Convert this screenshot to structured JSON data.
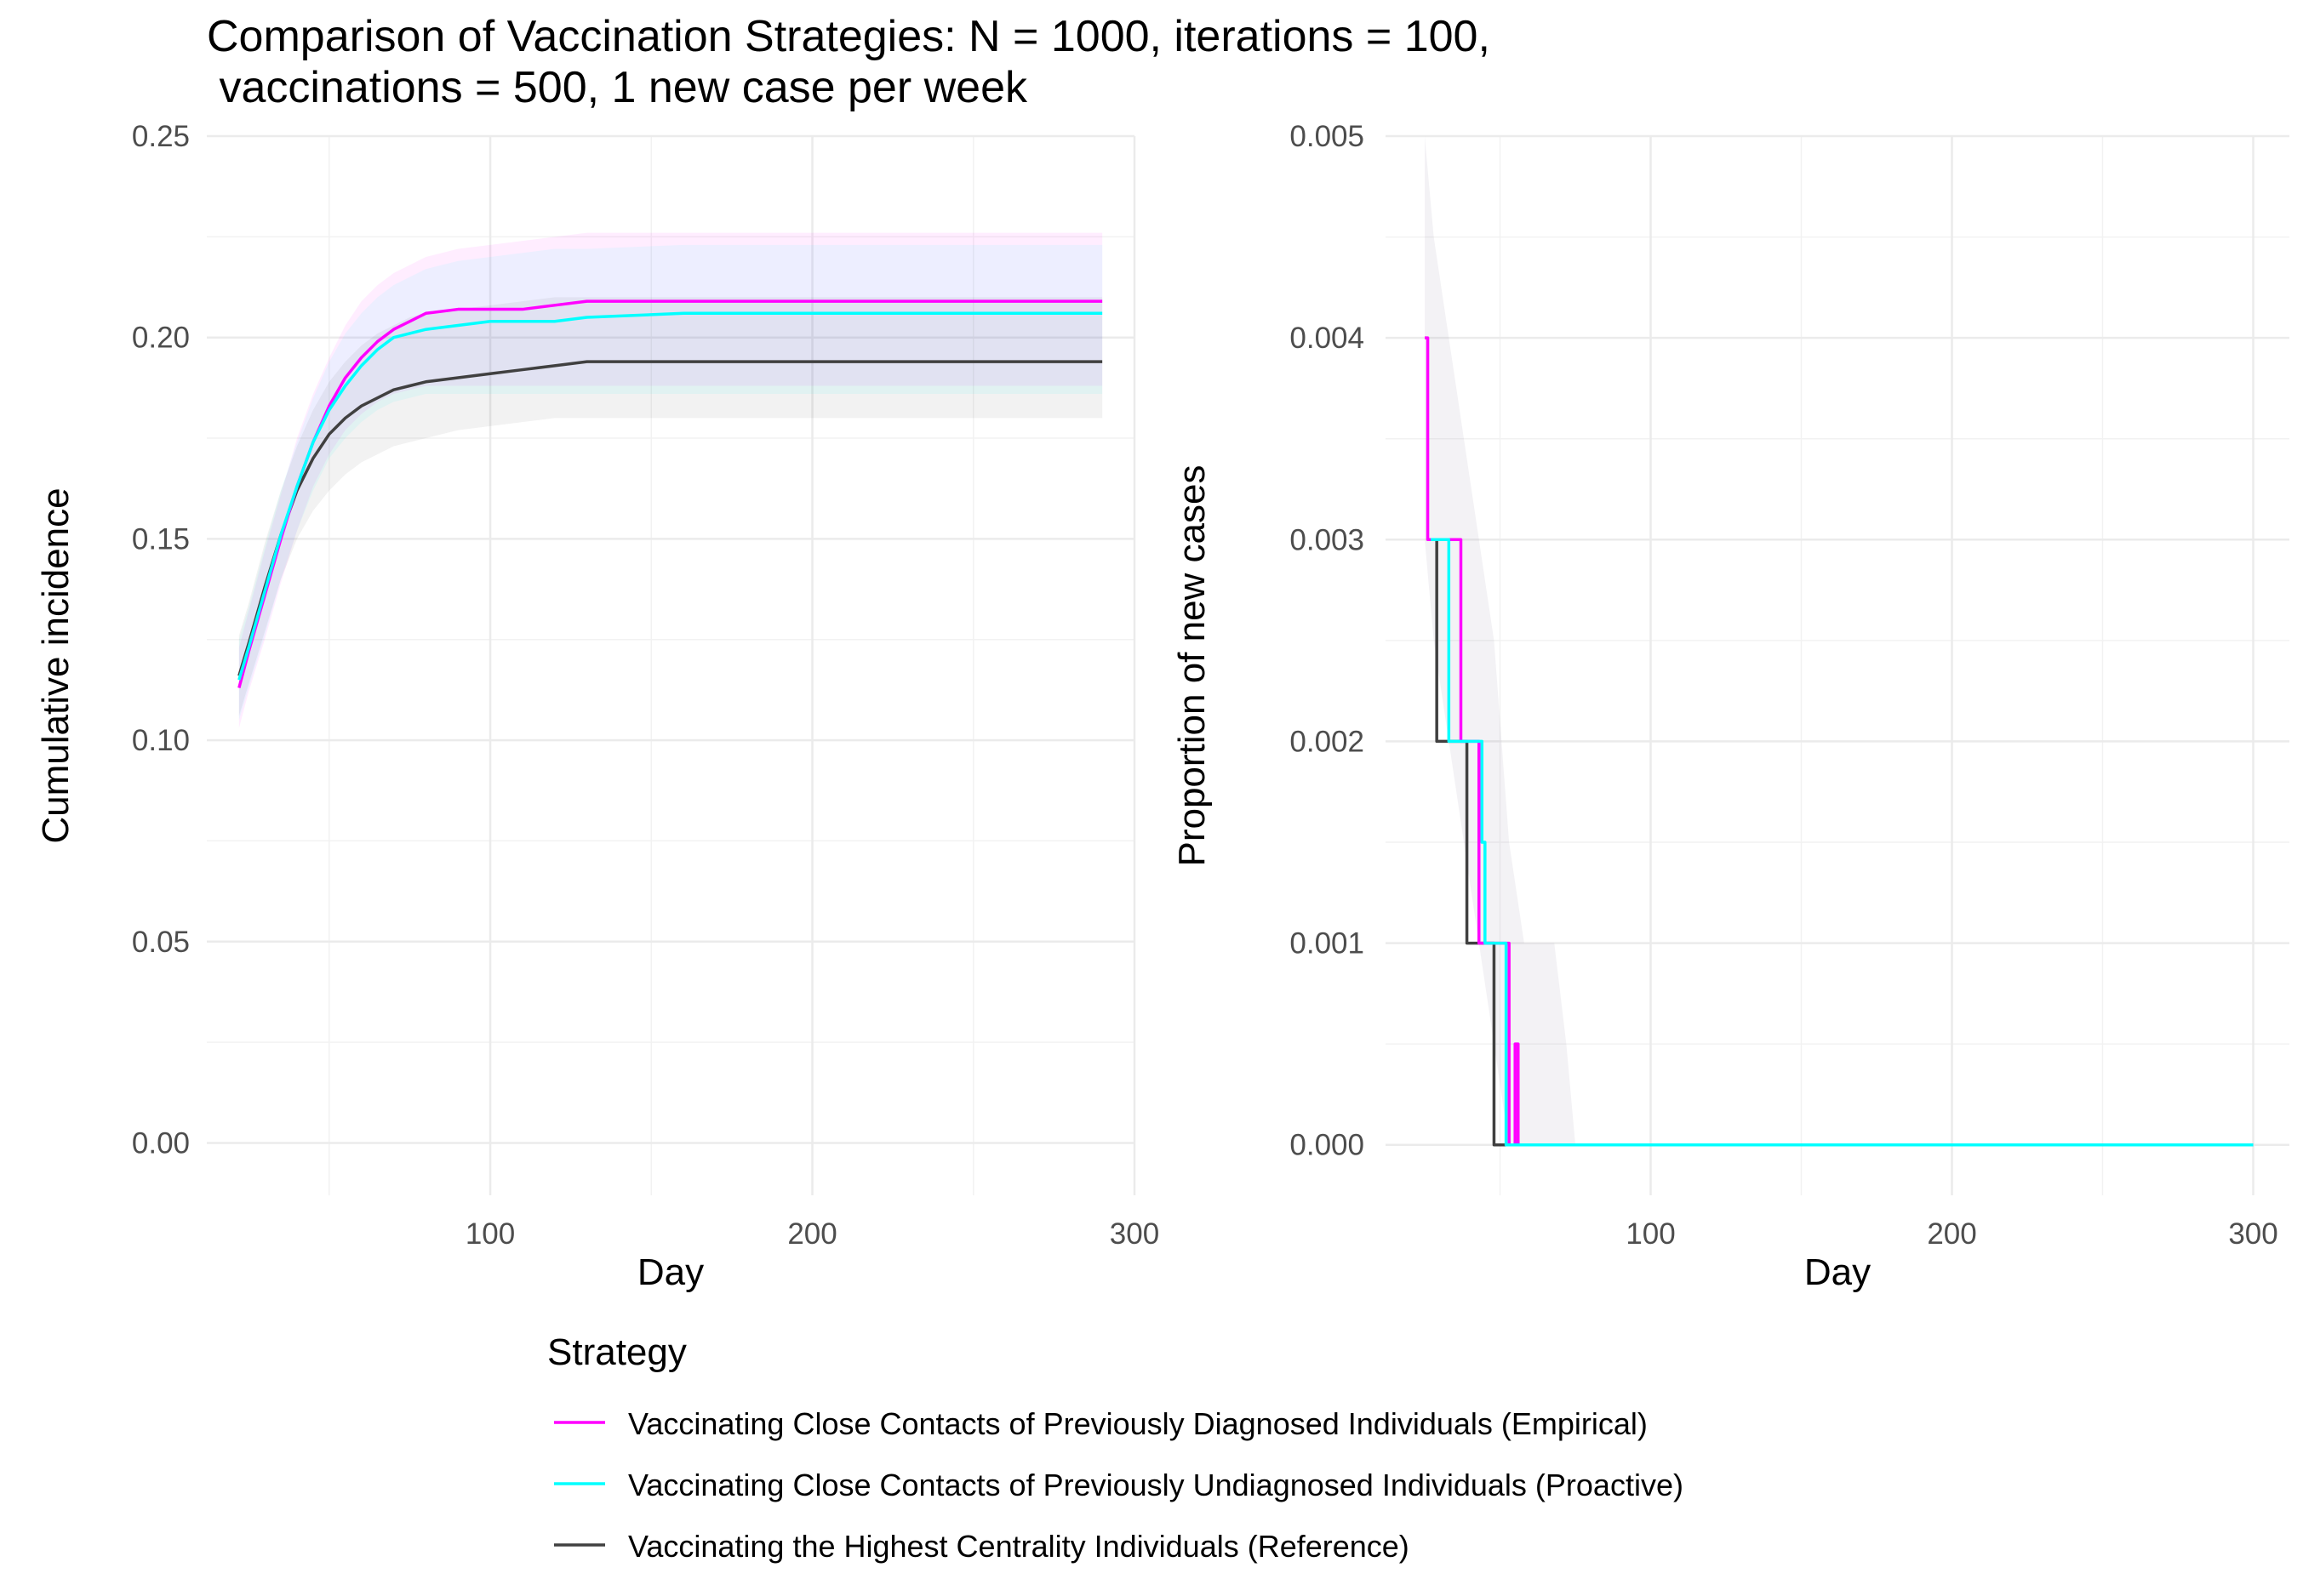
{
  "title": "Comparison of Vaccination Strategies: N = 1000, iterations = 100,\n vaccinations = 500, 1 new case per week",
  "legend": {
    "title": "Strategy",
    "entries": [
      {
        "label": "Vaccinating Close Contacts of Previously Diagnosed Individuals (Empirical)",
        "color": "#ff00ff"
      },
      {
        "label": "Vaccinating Close Contacts of Previously Undiagnosed Individuals (Proactive)",
        "color": "#00ffff"
      },
      {
        "label": "Vaccinating the Highest Centrality Individuals (Reference)",
        "color": "#404040"
      }
    ]
  },
  "chart_data": [
    {
      "type": "line",
      "xlabel": "Day",
      "ylabel": "Cumulative incidence",
      "xlim": [
        12,
        300
      ],
      "ylim": [
        -0.013,
        0.25
      ],
      "x_ticks": [
        100,
        200,
        300
      ],
      "y_ticks": [
        0.0,
        0.05,
        0.1,
        0.15,
        0.2,
        0.25
      ],
      "y_tick_labels": [
        "0.00",
        "0.05",
        "0.10",
        "0.15",
        "0.20",
        "0.25"
      ],
      "grid": true,
      "series": [
        {
          "name": "Vaccinating Close Contacts of Previously Diagnosed Individuals (Empirical)",
          "color": "#ff00ff",
          "x": [
            22,
            25,
            30,
            35,
            40,
            45,
            50,
            55,
            60,
            65,
            70,
            75,
            80,
            90,
            100,
            110,
            120,
            130,
            150,
            200,
            250,
            290
          ],
          "y": [
            0.113,
            0.122,
            0.136,
            0.15,
            0.163,
            0.174,
            0.183,
            0.19,
            0.195,
            0.199,
            0.202,
            0.204,
            0.206,
            0.207,
            0.207,
            0.207,
            0.208,
            0.209,
            0.209,
            0.209,
            0.209,
            0.209
          ],
          "lower": [
            0.103,
            0.112,
            0.125,
            0.139,
            0.152,
            0.163,
            0.171,
            0.177,
            0.181,
            0.184,
            0.186,
            0.187,
            0.188,
            0.188,
            0.188,
            0.188,
            0.188,
            0.188,
            0.188,
            0.188,
            0.188,
            0.188
          ],
          "upper": [
            0.123,
            0.132,
            0.147,
            0.161,
            0.175,
            0.186,
            0.195,
            0.203,
            0.209,
            0.213,
            0.216,
            0.218,
            0.22,
            0.222,
            0.223,
            0.224,
            0.225,
            0.226,
            0.226,
            0.226,
            0.226,
            0.226
          ]
        },
        {
          "name": "Vaccinating Close Contacts of Previously Undiagnosed Individuals (Proactive)",
          "color": "#00ffff",
          "x": [
            22,
            25,
            30,
            35,
            40,
            45,
            50,
            55,
            60,
            65,
            70,
            75,
            80,
            90,
            100,
            110,
            120,
            130,
            160,
            200,
            250,
            290
          ],
          "y": [
            0.115,
            0.123,
            0.137,
            0.151,
            0.163,
            0.174,
            0.182,
            0.188,
            0.193,
            0.197,
            0.2,
            0.201,
            0.202,
            0.203,
            0.204,
            0.204,
            0.204,
            0.205,
            0.206,
            0.206,
            0.206,
            0.206
          ],
          "lower": [
            0.105,
            0.113,
            0.126,
            0.14,
            0.152,
            0.162,
            0.17,
            0.175,
            0.179,
            0.182,
            0.184,
            0.185,
            0.186,
            0.186,
            0.186,
            0.186,
            0.186,
            0.186,
            0.186,
            0.186,
            0.186,
            0.186
          ],
          "upper": [
            0.125,
            0.133,
            0.148,
            0.162,
            0.174,
            0.185,
            0.194,
            0.201,
            0.206,
            0.21,
            0.213,
            0.215,
            0.217,
            0.219,
            0.22,
            0.221,
            0.222,
            0.222,
            0.223,
            0.223,
            0.223,
            0.223
          ]
        },
        {
          "name": "Vaccinating the Highest Centrality Individuals (Reference)",
          "color": "#404040",
          "x": [
            22,
            25,
            30,
            35,
            40,
            45,
            50,
            55,
            60,
            65,
            70,
            75,
            80,
            90,
            100,
            110,
            120,
            130,
            140,
            200,
            250,
            290
          ],
          "y": [
            0.116,
            0.124,
            0.138,
            0.151,
            0.162,
            0.17,
            0.176,
            0.18,
            0.183,
            0.185,
            0.187,
            0.188,
            0.189,
            0.19,
            0.191,
            0.192,
            0.193,
            0.194,
            0.194,
            0.194,
            0.194,
            0.194
          ],
          "lower": [
            0.106,
            0.114,
            0.127,
            0.14,
            0.15,
            0.157,
            0.162,
            0.166,
            0.169,
            0.171,
            0.173,
            0.174,
            0.175,
            0.177,
            0.178,
            0.179,
            0.18,
            0.18,
            0.18,
            0.18,
            0.18,
            0.18
          ],
          "upper": [
            0.126,
            0.134,
            0.149,
            0.162,
            0.173,
            0.182,
            0.189,
            0.194,
            0.198,
            0.201,
            0.203,
            0.205,
            0.206,
            0.207,
            0.208,
            0.209,
            0.21,
            0.21,
            0.21,
            0.21,
            0.21,
            0.21
          ]
        }
      ]
    },
    {
      "type": "line",
      "xlabel": "Day",
      "ylabel": "Proportion of new cases",
      "xlim": [
        12,
        312
      ],
      "ylim": [
        -0.00025,
        0.005
      ],
      "x_ticks": [
        100,
        200,
        300
      ],
      "y_ticks": [
        0.0,
        0.001,
        0.002,
        0.003,
        0.004,
        0.005
      ],
      "y_tick_labels": [
        "0.000",
        "0.001",
        "0.002",
        "0.003",
        "0.004",
        "0.005"
      ],
      "grid": true,
      "band_x": [
        25,
        28,
        33,
        38,
        43,
        48,
        53,
        58,
        63,
        68,
        72,
        75
      ],
      "band_lower": [
        0.003,
        0.0025,
        0.002,
        0.0015,
        0.001,
        0.0005,
        0.0,
        0.0,
        0.0,
        0.0,
        0.0,
        0.0
      ],
      "band_upper": [
        0.005,
        0.0045,
        0.004,
        0.0035,
        0.003,
        0.0025,
        0.0015,
        0.001,
        0.001,
        0.001,
        0.0005,
        0.0
      ],
      "series": [
        {
          "name": "Vaccinating Close Contacts of Previously Diagnosed Individuals (Empirical)",
          "color": "#ff00ff",
          "step_x": [
            25,
            26,
            37,
            40,
            43,
            50,
            53,
            55,
            56,
            57,
            300
          ],
          "step_y": [
            0.004,
            0.003,
            0.002,
            0.002,
            0.001,
            0.001,
            0.0,
            0.0005,
            0.0,
            0.0,
            0.0
          ]
        },
        {
          "name": "Vaccinating Close Contacts of Previously Undiagnosed Individuals (Proactive)",
          "color": "#00ffff",
          "step_x": [
            27,
            30,
            33,
            36,
            44,
            45,
            46,
            47,
            52,
            54,
            300
          ],
          "step_y": [
            0.003,
            0.003,
            0.002,
            0.002,
            0.0015,
            0.001,
            0.001,
            0.001,
            0.0,
            0.0,
            0.0
          ]
        },
        {
          "name": "Vaccinating the Highest Centrality Individuals (Reference)",
          "color": "#404040",
          "step_x": [
            28,
            29,
            36,
            38,
            39,
            41,
            47,
            48,
            49,
            50,
            300
          ],
          "step_y": [
            0.003,
            0.002,
            0.002,
            0.002,
            0.001,
            0.001,
            0.001,
            0.0,
            0.0,
            0.0,
            0.0
          ]
        }
      ]
    }
  ]
}
